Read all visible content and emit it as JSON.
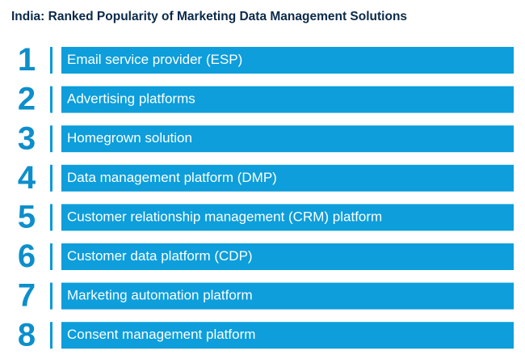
{
  "title": "India: Ranked Popularity of Marketing Data Management Solutions",
  "items": [
    {
      "rank": 1,
      "label": "Email service provider (ESP)"
    },
    {
      "rank": 2,
      "label": "Advertising platforms"
    },
    {
      "rank": 3,
      "label": "Homegrown solution"
    },
    {
      "rank": 4,
      "label": "Data management platform (DMP)"
    },
    {
      "rank": 5,
      "label": "Customer relationship management (CRM) platform"
    },
    {
      "rank": 6,
      "label": "Customer data platform (CDP)"
    },
    {
      "rank": 7,
      "label": "Marketing automation platform"
    },
    {
      "rank": 8,
      "label": "Consent management platform"
    }
  ]
}
